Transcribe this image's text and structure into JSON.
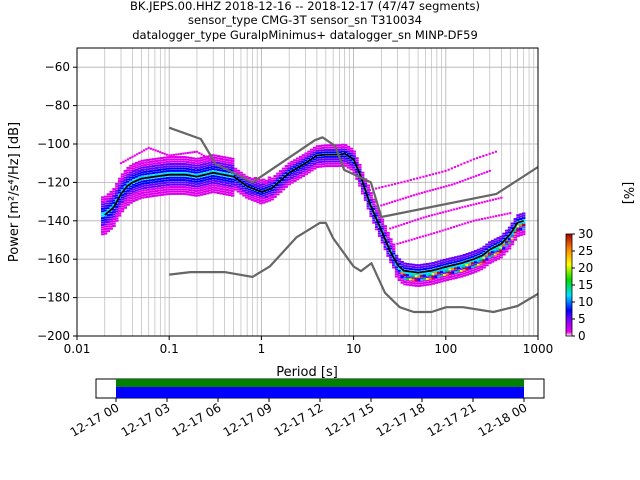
{
  "chart_data": {
    "type": "heatmap",
    "title_lines": [
      "BK.JEPS.00.HHZ   2018-12-16 -- 2018-12-17  (47/47 segments)",
      "sensor_type CMG-3T sensor_sn T310034",
      "datalogger_type GuralpMinimus+ datalogger_sn MINP-DF59"
    ],
    "xlabel": "Period [s]",
    "ylabel": "Power [m²/s⁴/Hz] [dB]",
    "xscale": "log",
    "xlim": [
      0.01,
      1000
    ],
    "ylim": [
      -200,
      -50
    ],
    "x_ticks": [
      0.01,
      0.1,
      1,
      10,
      100,
      1000
    ],
    "x_tick_labels": [
      "0.01",
      "0.1",
      "1",
      "10",
      "100",
      "1000"
    ],
    "y_ticks": [
      -200,
      -180,
      -160,
      -140,
      -120,
      -100,
      -80,
      -60
    ],
    "y_tick_labels": [
      "−200",
      "−180",
      "−160",
      "−140",
      "−120",
      "−100",
      "−80",
      "−60"
    ],
    "grid": true,
    "colorbar": {
      "label": "[%]",
      "range": [
        0,
        30
      ],
      "ticks": [
        0,
        5,
        10,
        15,
        20,
        25,
        30
      ],
      "tick_labels": [
        "0",
        "5",
        "10",
        "15",
        "20",
        "25",
        "30"
      ]
    },
    "series": [
      {
        "role": "mean-psd",
        "color": "#000000",
        "points": [
          [
            0.02,
            -137
          ],
          [
            0.025,
            -133
          ],
          [
            0.03,
            -126
          ],
          [
            0.035,
            -122
          ],
          [
            0.04,
            -120
          ],
          [
            0.05,
            -118
          ],
          [
            0.07,
            -117
          ],
          [
            0.1,
            -116
          ],
          [
            0.15,
            -116
          ],
          [
            0.2,
            -117
          ],
          [
            0.3,
            -115
          ],
          [
            0.5,
            -117
          ],
          [
            0.7,
            -122
          ],
          [
            1,
            -125
          ],
          [
            1.3,
            -123
          ],
          [
            2,
            -115
          ],
          [
            3,
            -110
          ],
          [
            4,
            -106
          ],
          [
            5,
            -105.5
          ],
          [
            7,
            -105.5
          ],
          [
            8,
            -105
          ],
          [
            10,
            -108
          ],
          [
            12,
            -117
          ],
          [
            15,
            -131
          ],
          [
            20,
            -145
          ],
          [
            25,
            -156
          ],
          [
            30,
            -163
          ],
          [
            35,
            -166
          ],
          [
            50,
            -167
          ],
          [
            70,
            -166
          ],
          [
            100,
            -164
          ],
          [
            150,
            -162
          ],
          [
            200,
            -160
          ],
          [
            250,
            -158
          ],
          [
            300,
            -155
          ],
          [
            400,
            -152
          ],
          [
            500,
            -147
          ],
          [
            600,
            -141
          ],
          [
            700,
            -140
          ]
        ]
      },
      {
        "role": "high-noise-model",
        "color": "#666666",
        "points": [
          [
            0.1,
            -91.5
          ],
          [
            0.22,
            -97.4
          ],
          [
            0.32,
            -110.5
          ],
          [
            0.8,
            -120
          ],
          [
            3.8,
            -98
          ],
          [
            4.6,
            -96.5
          ],
          [
            6.3,
            -101
          ],
          [
            7.9,
            -113.5
          ],
          [
            15.4,
            -120
          ],
          [
            20,
            -138
          ],
          [
            354,
            -126
          ],
          [
            1000,
            -112
          ]
        ]
      },
      {
        "role": "low-noise-model",
        "color": "#666666",
        "points": [
          [
            0.1,
            -168
          ],
          [
            0.17,
            -166.7
          ],
          [
            0.4,
            -166.7
          ],
          [
            0.8,
            -169.2
          ],
          [
            1.24,
            -163.7
          ],
          [
            2.4,
            -148.6
          ],
          [
            4.3,
            -141.1
          ],
          [
            5,
            -141.1
          ],
          [
            6,
            -149
          ],
          [
            10,
            -163.8
          ],
          [
            12,
            -166.2
          ],
          [
            15.6,
            -162.1
          ],
          [
            21.9,
            -177.5
          ],
          [
            31.6,
            -185
          ],
          [
            45,
            -187.5
          ],
          [
            70,
            -187.5
          ],
          [
            101,
            -185
          ],
          [
            154,
            -185
          ],
          [
            328,
            -187.5
          ],
          [
            600,
            -184.4
          ],
          [
            1000,
            -178
          ]
        ]
      }
    ]
  },
  "time_bar": {
    "tick_labels": [
      "12-17 00",
      "12-17 03",
      "12-17 06",
      "12-17 09",
      "12-17 12",
      "12-17 15",
      "12-17 18",
      "12-17 21",
      "12-18 00"
    ],
    "coverage_color": "#0000ff",
    "gap_flag_color": "#008000"
  }
}
